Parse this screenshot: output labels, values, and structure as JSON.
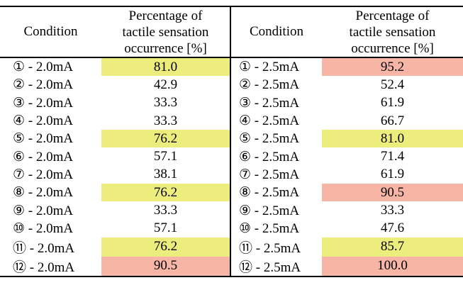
{
  "colors": {
    "yellow": "#EDED7E",
    "pink": "#F7B5A6"
  },
  "tables": [
    {
      "name": "2.0mA",
      "header": {
        "condition": "Condition",
        "percentage_lines": [
          "Percentage of",
          "tactile sensation",
          "occurrence [%]"
        ]
      },
      "rows": [
        {
          "condition": "① - 2.0mA",
          "value": "81.0",
          "highlight": "yellow"
        },
        {
          "condition": "② - 2.0mA",
          "value": "42.9",
          "highlight": ""
        },
        {
          "condition": "③ - 2.0mA",
          "value": "33.3",
          "highlight": ""
        },
        {
          "condition": "④ - 2.0mA",
          "value": "33.3",
          "highlight": ""
        },
        {
          "condition": "⑤ - 2.0mA",
          "value": "76.2",
          "highlight": "yellow"
        },
        {
          "condition": "⑥ - 2.0mA",
          "value": "57.1",
          "highlight": ""
        },
        {
          "condition": "⑦ - 2.0mA",
          "value": "38.1",
          "highlight": ""
        },
        {
          "condition": "⑧ - 2.0mA",
          "value": "76.2",
          "highlight": "yellow"
        },
        {
          "condition": "⑨ - 2.0mA",
          "value": "33.3",
          "highlight": ""
        },
        {
          "condition": "⑩ - 2.0mA",
          "value": "57.1",
          "highlight": ""
        },
        {
          "condition": "⑪ - 2.0mA",
          "value": "76.2",
          "highlight": "yellow"
        },
        {
          "condition": "⑫ - 2.0mA",
          "value": "90.5",
          "highlight": "pink"
        }
      ]
    },
    {
      "name": "2.5mA",
      "header": {
        "condition": "Condition",
        "percentage_lines": [
          "Percentage of",
          "tactile sensation",
          "occurrence [%]"
        ]
      },
      "rows": [
        {
          "condition": "① - 2.5mA",
          "value": "95.2",
          "highlight": "pink"
        },
        {
          "condition": "② - 2.5mA",
          "value": "52.4",
          "highlight": ""
        },
        {
          "condition": "③ - 2.5mA",
          "value": "61.9",
          "highlight": ""
        },
        {
          "condition": "④ - 2.5mA",
          "value": "66.7",
          "highlight": ""
        },
        {
          "condition": "⑤ - 2.5mA",
          "value": "81.0",
          "highlight": "yellow"
        },
        {
          "condition": "⑥ - 2.5mA",
          "value": "71.4",
          "highlight": ""
        },
        {
          "condition": "⑦ - 2.5mA",
          "value": "61.9",
          "highlight": ""
        },
        {
          "condition": "⑧ - 2.5mA",
          "value": "90.5",
          "highlight": "pink"
        },
        {
          "condition": "⑨ - 2.5mA",
          "value": "33.3",
          "highlight": ""
        },
        {
          "condition": "⑩ - 2.5mA",
          "value": "47.6",
          "highlight": ""
        },
        {
          "condition": "⑪ - 2.5mA",
          "value": "85.7",
          "highlight": "yellow"
        },
        {
          "condition": "⑫ - 2.5mA",
          "value": "100.0",
          "highlight": "pink"
        }
      ]
    }
  ]
}
